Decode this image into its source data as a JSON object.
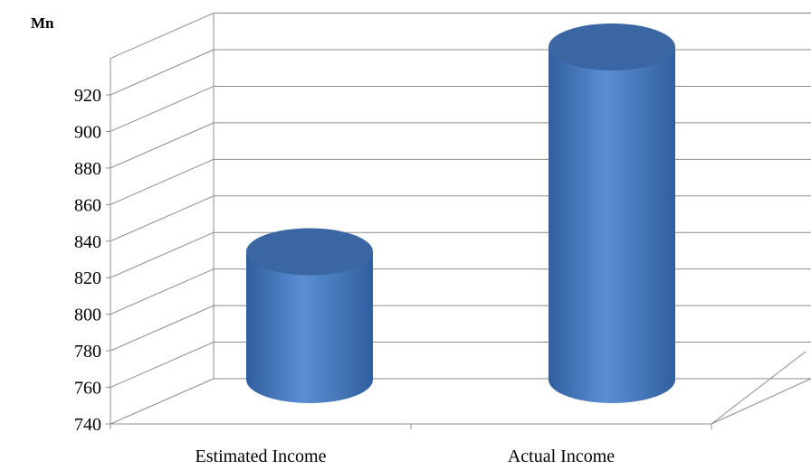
{
  "chart_data": {
    "type": "bar",
    "style": "3d-cylinder",
    "unit_label": "Mn",
    "categories": [
      "Estimated Income",
      "Actual Income"
    ],
    "values": [
      810,
      922
    ],
    "ylim": [
      740,
      920
    ],
    "yticks": [
      740,
      760,
      780,
      800,
      820,
      840,
      860,
      880,
      900,
      920
    ],
    "grid": true,
    "legend": "none",
    "colors": {
      "bar_light": "#5b8fd4",
      "bar_dark": "#2f5f9e",
      "bar_top": "#3a67a4",
      "grid": "#8c8c8c"
    }
  }
}
